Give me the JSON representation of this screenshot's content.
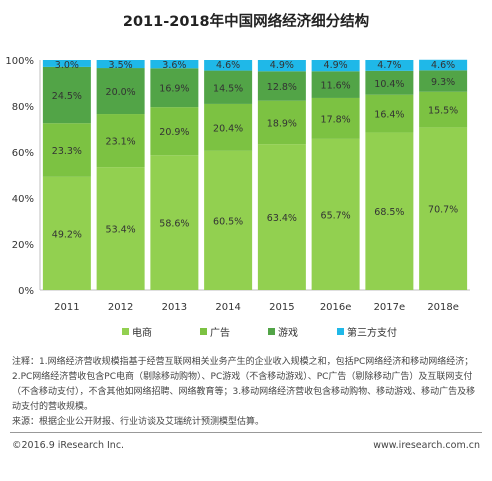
{
  "title": "2011-2018年中国网络经济细分结构",
  "chart_data": {
    "type": "bar",
    "stacked": true,
    "percent": true,
    "categories": [
      "2011",
      "2012",
      "2013",
      "2014",
      "2015",
      "2016e",
      "2017e",
      "2018e"
    ],
    "series": [
      {
        "name": "电商",
        "color": "#92d050",
        "values": [
          49.2,
          53.4,
          58.6,
          60.5,
          63.4,
          65.7,
          68.5,
          70.7
        ]
      },
      {
        "name": "广告",
        "color": "#7cc242",
        "values": [
          23.3,
          23.1,
          20.9,
          20.4,
          18.9,
          17.8,
          16.4,
          15.5
        ]
      },
      {
        "name": "游戏",
        "color": "#52a447",
        "values": [
          24.5,
          20.0,
          16.9,
          14.5,
          12.8,
          11.6,
          10.4,
          9.3
        ]
      },
      {
        "name": "第三方支付",
        "color": "#1fb8e8",
        "values": [
          3.0,
          3.5,
          3.6,
          4.6,
          4.9,
          4.9,
          4.7,
          4.6
        ]
      }
    ],
    "yticks": [
      "0%",
      "20%",
      "40%",
      "60%",
      "80%",
      "100%"
    ],
    "ylim": [
      0,
      100
    ],
    "legend_position": "bottom"
  },
  "notes": [
    "注释：1.网络经济营收规模指基于经营互联网相关业务产生的企业收入规模之和，包括PC网络经济和移动网络经济；2.PC网络经济营收包含PC电商（剔除移动购物）、PC游戏（不含移动游戏）、PC广告（剔除移动广告）及互联网支付（不含移动支付），不含其他如网络招聘、网络教育等；3.移动网络经济营收包含移动购物、移动游戏、移动广告及移动支付的营收规模。",
    "来源：根据企业公开财报、行业访谈及艾瑞统计预测模型估算。"
  ],
  "footer": {
    "copyright": "©2016.9 iResearch Inc.",
    "website": "www.iresearch.com.cn"
  }
}
